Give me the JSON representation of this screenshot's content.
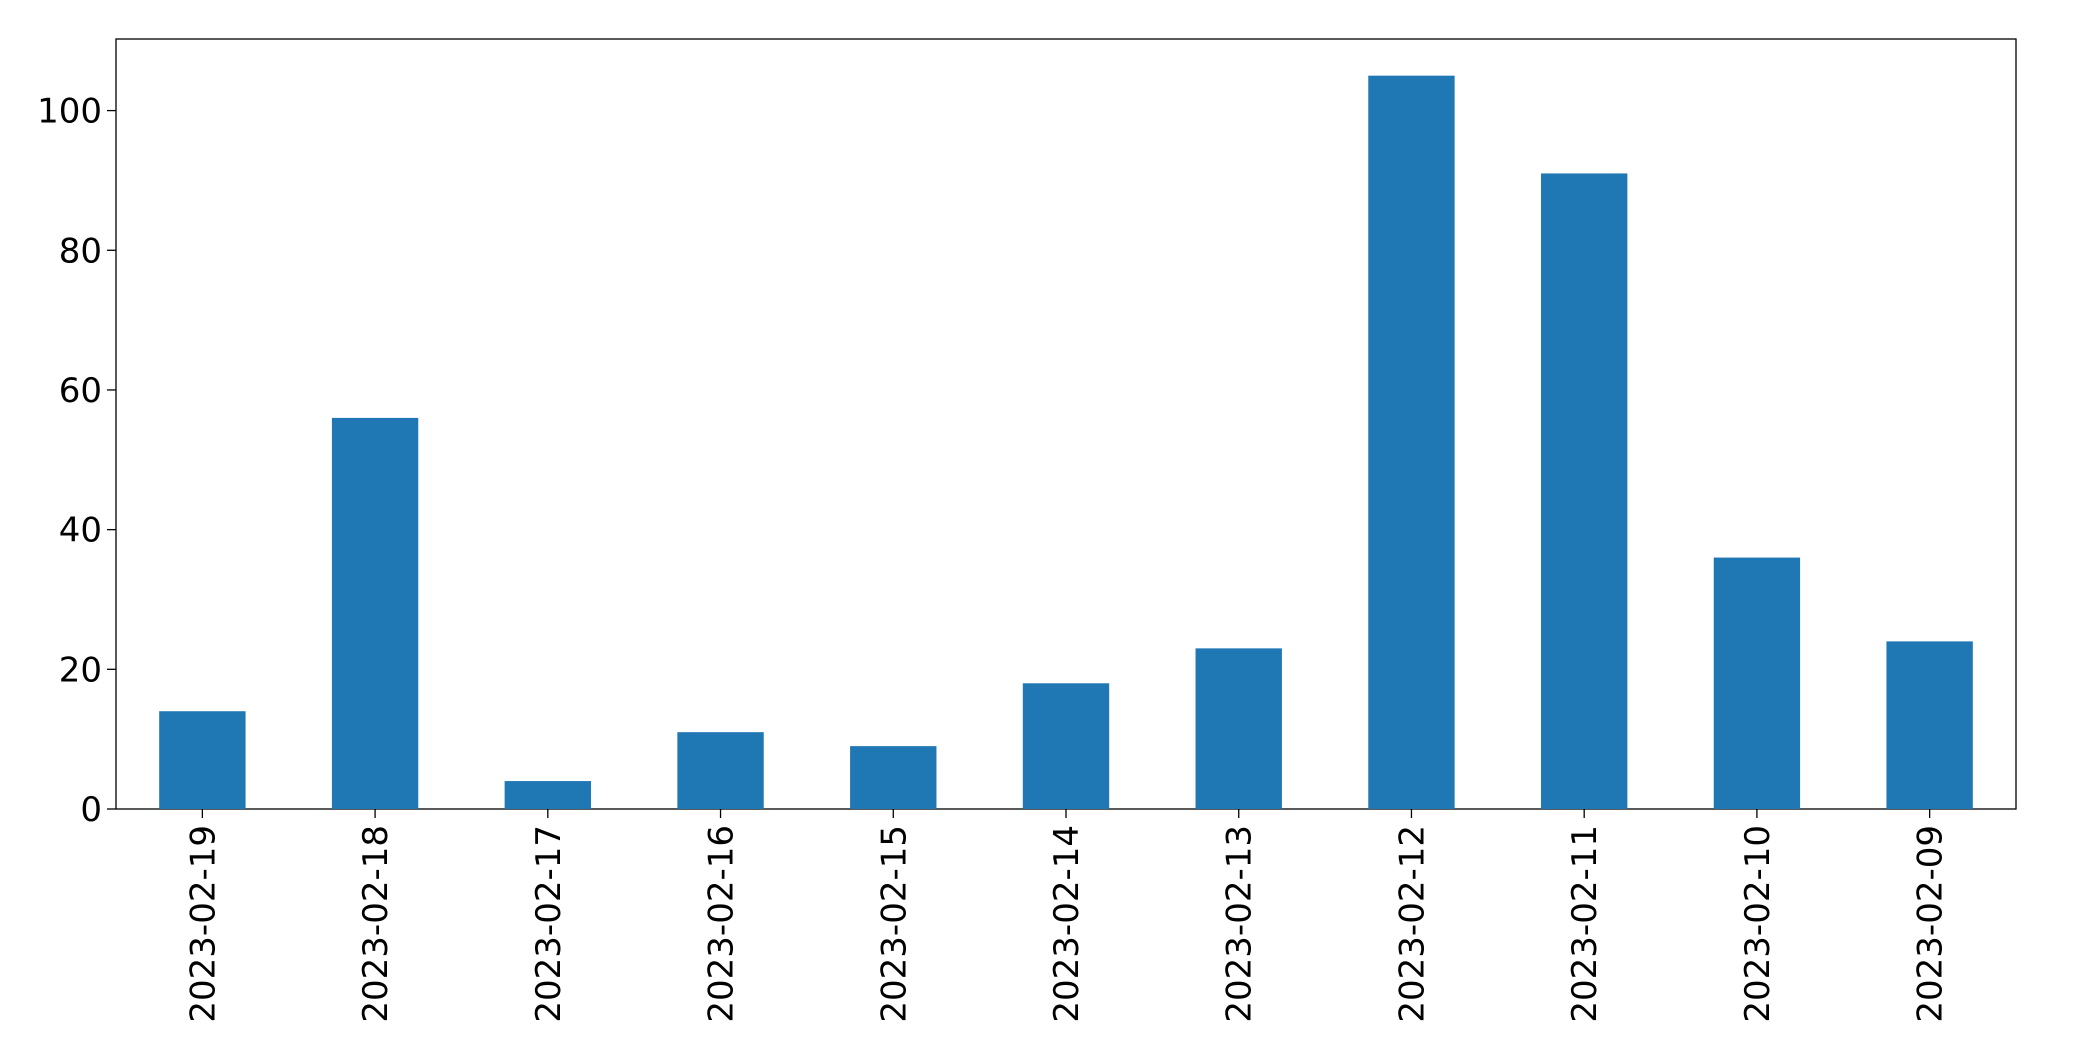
{
  "chart_data": {
    "type": "bar",
    "categories": [
      "2023-02-19",
      "2023-02-18",
      "2023-02-17",
      "2023-02-16",
      "2023-02-15",
      "2023-02-14",
      "2023-02-13",
      "2023-02-12",
      "2023-02-11",
      "2023-02-10",
      "2023-02-09"
    ],
    "values": [
      14,
      56,
      4,
      11,
      9,
      18,
      23,
      105,
      91,
      36,
      24
    ],
    "color": "#1f77b4",
    "ylim": [
      0,
      110.25
    ],
    "yticks": [
      0,
      20,
      40,
      60,
      80,
      100
    ],
    "grid": false
  }
}
